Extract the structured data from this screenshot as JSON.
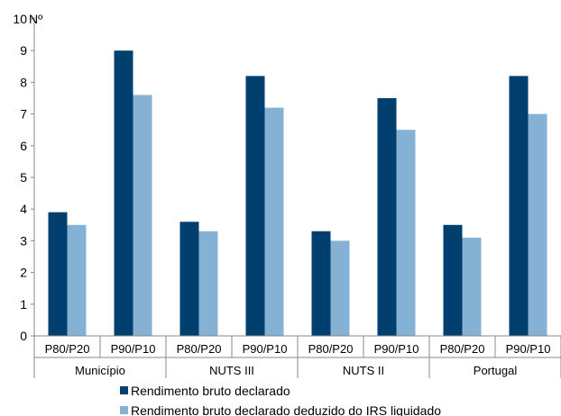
{
  "chart_data": {
    "type": "bar",
    "ylabel": "Nº",
    "ylim": [
      0,
      10
    ],
    "yticks": [
      0,
      1,
      2,
      3,
      4,
      5,
      6,
      7,
      8,
      9,
      10
    ],
    "grid": false,
    "legend_position": "bottom",
    "groups": [
      "Município",
      "NUTS III",
      "NUTS II",
      "Portugal"
    ],
    "categories": [
      "P80/P20",
      "P90/P10",
      "P80/P20",
      "P90/P10",
      "P80/P20",
      "P90/P10",
      "P80/P20",
      "P90/P10"
    ],
    "series": [
      {
        "name": "Rendimento bruto declarado",
        "color": "#003f6e",
        "values": [
          3.9,
          9.0,
          3.6,
          8.2,
          3.3,
          7.5,
          3.5,
          8.2
        ]
      },
      {
        "name": "Rendimento bruto declarado deduzido do IRS liquidado",
        "color": "#84b1d4",
        "values": [
          3.5,
          7.6,
          3.3,
          7.2,
          3.0,
          6.5,
          3.1,
          7.0
        ]
      }
    ]
  }
}
